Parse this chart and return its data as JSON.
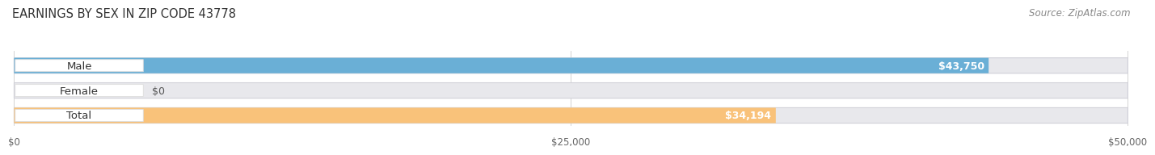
{
  "title": "EARNINGS BY SEX IN ZIP CODE 43778",
  "source": "Source: ZipAtlas.com",
  "categories": [
    "Male",
    "Female",
    "Total"
  ],
  "values": [
    43750,
    0,
    34194
  ],
  "bar_colors": [
    "#6aafd6",
    "#f5a7c0",
    "#f9c27a"
  ],
  "value_labels": [
    "$43,750",
    "$0",
    "$34,194"
  ],
  "xlim": [
    0,
    50000
  ],
  "xticklabels": [
    "$0",
    "$25,000",
    "$50,000"
  ],
  "xtick_values": [
    0,
    25000,
    50000
  ],
  "bar_track_color": "#e8e8ec",
  "bar_track_edge": "#d0d0d8",
  "label_bg_color": "#ffffff",
  "label_edge_color": "#dddddd",
  "bg_color": "#ffffff",
  "title_fontsize": 10.5,
  "source_fontsize": 8.5,
  "label_fontsize": 9.5,
  "value_fontsize": 9,
  "tick_fontsize": 8.5
}
